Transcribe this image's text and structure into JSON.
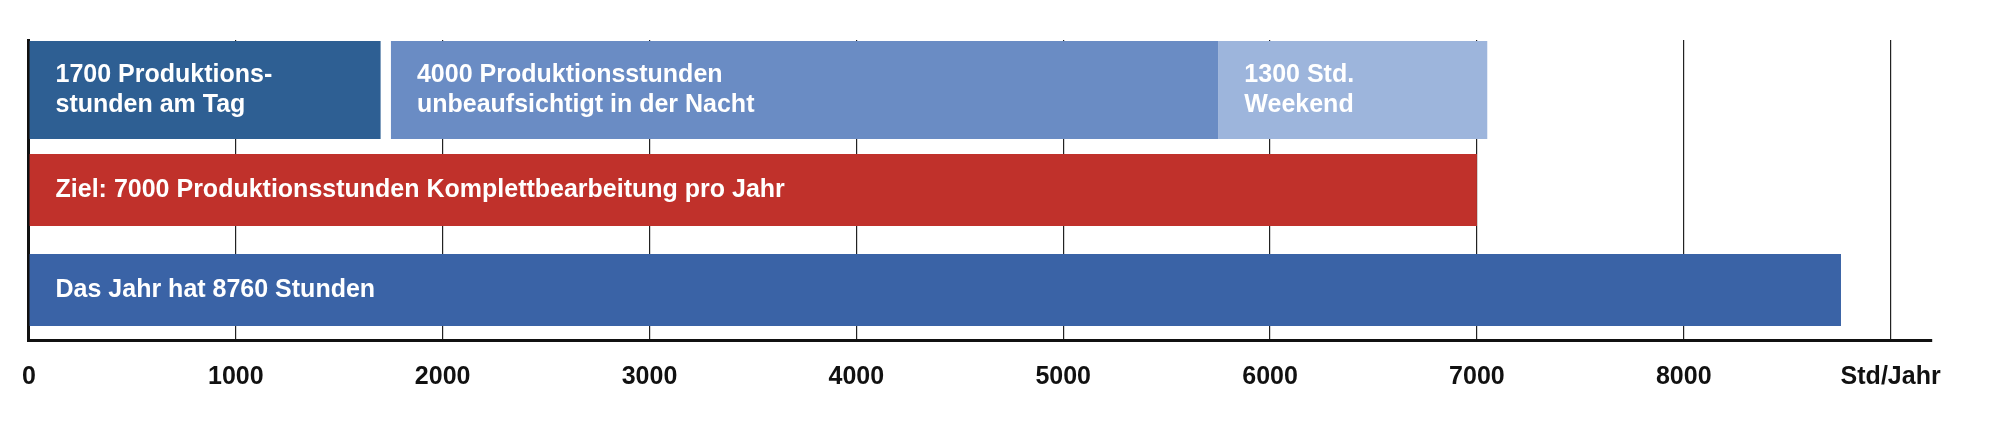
{
  "chart_data": {
    "type": "bar",
    "orientation": "horizontal",
    "categories": [
      null,
      null,
      null
    ],
    "series": [
      {
        "color": "#2e5f93",
        "values": [
          1700,
          null,
          null
        ],
        "base": [
          0,
          null,
          null
        ],
        "value_labels": [
          "1700 Produktions-\nstunden am Tag",
          null,
          null
        ]
      },
      {
        "color": "#6a8cc4",
        "values": [
          4000,
          null,
          null
        ],
        "base": [
          1750,
          null,
          null
        ],
        "value_labels": [
          "4000 Produktionsstunden\nunbeaufsichtigt in der Nacht",
          null,
          null
        ]
      },
      {
        "color": "#9db5dc",
        "values": [
          1300,
          null,
          null
        ],
        "base": [
          5750,
          null,
          null
        ],
        "value_labels": [
          "1300 Std.\nWeekend",
          null,
          null
        ]
      },
      {
        "color": "#c0312b",
        "values": [
          null,
          7000,
          null
        ],
        "base": [
          null,
          0,
          null
        ],
        "value_labels": [
          null,
          "Ziel: 7000 Produktionsstunden Komplettbearbeitung pro Jahr",
          null
        ]
      },
      {
        "color": "#3a63a6",
        "values": [
          null,
          null,
          8760
        ],
        "base": [
          null,
          null,
          0
        ],
        "value_labels": [
          null,
          null,
          "Das Jahr hat 8760 Stunden"
        ]
      }
    ],
    "xlim": [
      0,
      9200
    ],
    "xticks": [
      0,
      1000,
      2000,
      3000,
      4000,
      5000,
      6000,
      7000,
      8000,
      {
        "value": 9000,
        "label": "Std/Jahr"
      }
    ],
    "grid": "x",
    "tick_labels": "x",
    "legend": false
  }
}
